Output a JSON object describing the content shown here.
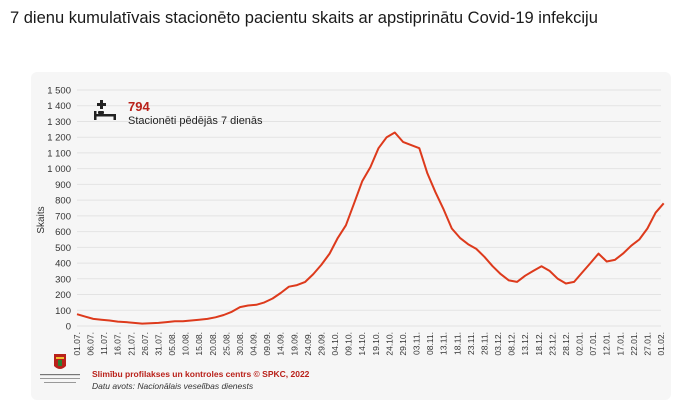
{
  "title": "7 dienu kumulatīvais stacionēto pacientu skaits ar apstiprinātu Covid-19 infekciju",
  "stat": {
    "icon": "hospital-bed-icon",
    "value": "794",
    "label": "Stacionēti pēdējās 7 dienās"
  },
  "footer": {
    "logo": "spkc-logo",
    "logo_caption": "Slimību profilakses un kontroles centrs",
    "source_line": "Slimību profilakses un kontroles centrs © SPKC, 2022",
    "data_source": "Datu avots: Nacionālais veselības dienests"
  },
  "colors": {
    "line": "#dd3a1c",
    "accent_text": "#b9211a",
    "card_bg": "#f6f6f6"
  },
  "chart_data": {
    "type": "line",
    "title": "",
    "xlabel": "",
    "ylabel": "Skaits",
    "ylim": [
      0,
      1500
    ],
    "yticks": [
      0,
      100,
      200,
      300,
      400,
      500,
      600,
      700,
      800,
      900,
      1000,
      1100,
      1200,
      1300,
      1400,
      1500
    ],
    "ytick_labels": [
      "0",
      "100",
      "200",
      "300",
      "400",
      "500",
      "600",
      "700",
      "800",
      "900",
      "1 000",
      "1 100",
      "1 200",
      "1 300",
      "1 400",
      "1 500"
    ],
    "grid": true,
    "x_date_ticks": [
      "2021-07-01",
      "2021-07-06",
      "2021-07-11",
      "2021-07-16",
      "2021-07-21",
      "2021-07-26",
      "2021-07-31",
      "2021-08-05",
      "2021-08-10",
      "2021-08-15",
      "2021-08-20",
      "2021-08-25",
      "2021-08-30",
      "2021-09-04",
      "2021-09-09",
      "2021-09-14",
      "2021-09-19",
      "2021-09-24",
      "2021-09-29",
      "2021-10-04",
      "2021-10-09",
      "2021-10-14",
      "2021-10-19",
      "2021-10-24",
      "2021-10-29",
      "2021-11-03",
      "2021-11-08",
      "2021-11-13",
      "2021-11-18",
      "2021-11-23",
      "2021-11-28",
      "2021-12-03",
      "2021-12-08",
      "2021-12-13",
      "2021-12-18",
      "2021-12-23",
      "2021-12-28",
      "2022-01-02",
      "2022-01-07",
      "2022-01-12",
      "2022-01-17",
      "2022-01-22",
      "2022-01-27",
      "2022-02-01"
    ],
    "x_tick_labels": [
      "01.07.",
      "06.07.",
      "11.07.",
      "16.07.",
      "21.07.",
      "26.07.",
      "31.07.",
      "05.08.",
      "10.08.",
      "15.08.",
      "20.08.",
      "25.08.",
      "30.08.",
      "04.09.",
      "09.09.",
      "14.09.",
      "19.09.",
      "24.09.",
      "29.09.",
      "04.10.",
      "09.10.",
      "14.10.",
      "19.10.",
      "24.10.",
      "29.10.",
      "03.11.",
      "08.11.",
      "13.11.",
      "18.11.",
      "23.11.",
      "28.11.",
      "03.12.",
      "08.12.",
      "13.12.",
      "18.12.",
      "23.12.",
      "28.12.",
      "02.01.",
      "07.01.",
      "12.01.",
      "17.01.",
      "22.01.",
      "27.01.",
      "01.02."
    ],
    "series": [
      {
        "x": [
          "2021-07-01",
          "2021-07-04",
          "2021-07-07",
          "2021-07-10",
          "2021-07-13",
          "2021-07-16",
          "2021-07-19",
          "2021-07-22",
          "2021-07-25",
          "2021-07-28",
          "2021-07-31",
          "2021-08-03",
          "2021-08-06",
          "2021-08-09",
          "2021-08-12",
          "2021-08-15",
          "2021-08-18",
          "2021-08-21",
          "2021-08-24",
          "2021-08-27",
          "2021-08-30",
          "2021-09-02",
          "2021-09-05",
          "2021-09-08",
          "2021-09-11",
          "2021-09-14",
          "2021-09-17",
          "2021-09-20",
          "2021-09-23",
          "2021-09-26",
          "2021-09-29",
          "2021-10-02",
          "2021-10-05",
          "2021-10-08",
          "2021-10-11",
          "2021-10-14",
          "2021-10-17",
          "2021-10-20",
          "2021-10-23",
          "2021-10-26",
          "2021-10-29",
          "2021-11-01",
          "2021-11-04",
          "2021-11-07",
          "2021-11-10",
          "2021-11-13",
          "2021-11-16",
          "2021-11-19",
          "2021-11-22",
          "2021-11-25",
          "2021-11-28",
          "2021-12-01",
          "2021-12-04",
          "2021-12-07",
          "2021-12-10",
          "2021-12-13",
          "2021-12-16",
          "2021-12-19",
          "2021-12-22",
          "2021-12-25",
          "2021-12-28",
          "2021-12-31",
          "2022-01-03",
          "2022-01-06",
          "2022-01-09",
          "2022-01-12",
          "2022-01-15",
          "2022-01-18",
          "2022-01-21",
          "2022-01-24",
          "2022-01-27",
          "2022-01-30",
          "2022-02-02"
        ],
        "values": [
          75,
          60,
          45,
          40,
          35,
          28,
          25,
          20,
          15,
          18,
          20,
          25,
          30,
          30,
          35,
          40,
          45,
          55,
          70,
          90,
          120,
          130,
          135,
          150,
          175,
          210,
          250,
          260,
          280,
          330,
          390,
          460,
          560,
          640,
          780,
          920,
          1010,
          1130,
          1200,
          1230,
          1170,
          1150,
          1130,
          970,
          850,
          740,
          620,
          560,
          520,
          490,
          440,
          380,
          330,
          290,
          280,
          320,
          350,
          380,
          350,
          300,
          270,
          280,
          340,
          400,
          460,
          410,
          420,
          460,
          510,
          550,
          620,
          720,
          780
        ]
      }
    ]
  }
}
